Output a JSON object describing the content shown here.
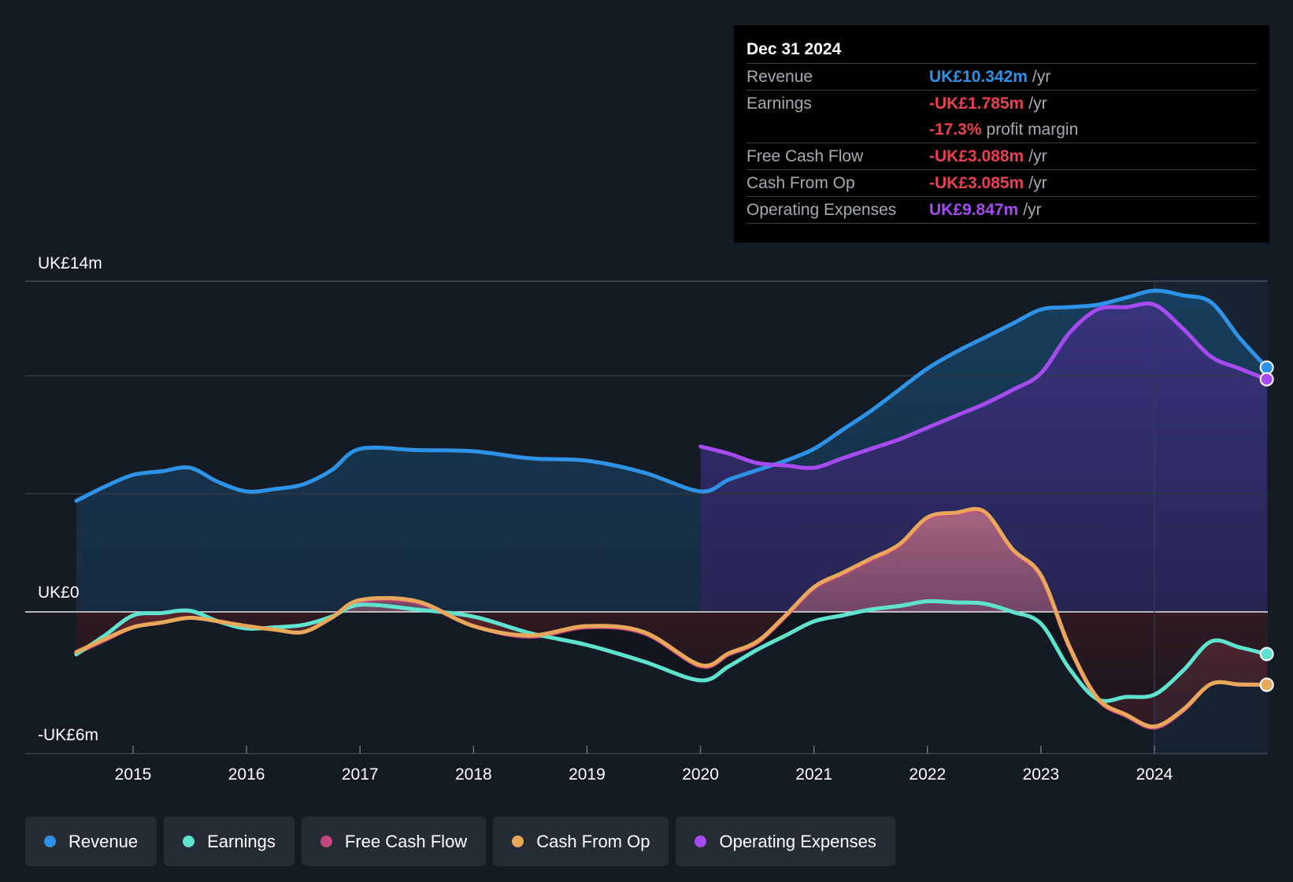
{
  "tooltip": {
    "date": "Dec 31 2024",
    "rows": [
      {
        "label": "Revenue",
        "value": "UK£10.342m",
        "unit": "/yr",
        "color": "#2e93e6"
      },
      {
        "label": "Earnings",
        "value": "-UK£1.785m",
        "unit": "/yr",
        "color": "#e8414f"
      },
      {
        "label": "",
        "value": "-17.3%",
        "unit": "profit margin",
        "color": "#e8414f"
      },
      {
        "label": "Free Cash Flow",
        "value": "-UK£3.088m",
        "unit": "/yr",
        "color": "#e8414f"
      },
      {
        "label": "Cash From Op",
        "value": "-UK£3.085m",
        "unit": "/yr",
        "color": "#e8414f"
      },
      {
        "label": "Operating Expenses",
        "value": "UK£9.847m",
        "unit": "/yr",
        "color": "#a64bf0"
      }
    ]
  },
  "legend": [
    {
      "label": "Revenue",
      "color": "#2e93e6"
    },
    {
      "label": "Earnings",
      "color": "#5fe3cf"
    },
    {
      "label": "Free Cash Flow",
      "color": "#c8457f"
    },
    {
      "label": "Cash From Op",
      "color": "#e8a85a"
    },
    {
      "label": "Operating Expenses",
      "color": "#a64bf0"
    }
  ],
  "chart_data": {
    "type": "line",
    "title": "",
    "ylabel_top": "UK£14m",
    "ylabel_zero": "UK£0",
    "ylabel_bottom": "-UK£6m",
    "ylim": [
      -6,
      14
    ],
    "xlim": [
      2014.05,
      2024.99
    ],
    "x_ticks": [
      2015,
      2016,
      2017,
      2018,
      2019,
      2020,
      2021,
      2022,
      2023,
      2024
    ],
    "series": [
      {
        "name": "Revenue",
        "color": "#2e93e6",
        "x": [
          2014.5,
          2014.75,
          2015.0,
          2015.25,
          2015.5,
          2015.75,
          2016.0,
          2016.25,
          2016.5,
          2016.75,
          2017.0,
          2017.5,
          2018.0,
          2018.5,
          2019.0,
          2019.5,
          2020.0,
          2020.25,
          2020.5,
          2020.75,
          2021.0,
          2021.25,
          2021.5,
          2021.75,
          2022.0,
          2022.25,
          2022.5,
          2022.75,
          2023.0,
          2023.25,
          2023.5,
          2023.75,
          2024.0,
          2024.25,
          2024.5,
          2024.75,
          2024.99
        ],
        "values": [
          4.7,
          5.3,
          5.8,
          5.95,
          6.1,
          5.5,
          5.1,
          5.2,
          5.4,
          6.0,
          6.9,
          6.85,
          6.8,
          6.5,
          6.4,
          5.9,
          5.1,
          5.6,
          6.0,
          6.4,
          6.9,
          7.7,
          8.5,
          9.4,
          10.3,
          11.0,
          11.6,
          12.2,
          12.8,
          12.9,
          13.0,
          13.3,
          13.6,
          13.4,
          13.1,
          11.6,
          10.342
        ]
      },
      {
        "name": "Earnings",
        "color": "#5fe3cf",
        "x": [
          2014.5,
          2014.75,
          2015.0,
          2015.25,
          2015.5,
          2015.75,
          2016.0,
          2016.25,
          2016.5,
          2016.75,
          2017.0,
          2017.5,
          2018.0,
          2018.5,
          2019.0,
          2019.5,
          2020.0,
          2020.25,
          2020.5,
          2020.75,
          2021.0,
          2021.25,
          2021.5,
          2021.75,
          2022.0,
          2022.25,
          2022.5,
          2022.75,
          2023.0,
          2023.25,
          2023.5,
          2023.75,
          2024.0,
          2024.25,
          2024.5,
          2024.75,
          2024.99
        ],
        "values": [
          -1.8,
          -1.0,
          -0.15,
          -0.05,
          0.05,
          -0.4,
          -0.7,
          -0.65,
          -0.55,
          -0.2,
          0.3,
          0.1,
          -0.2,
          -0.9,
          -1.4,
          -2.1,
          -2.9,
          -2.3,
          -1.6,
          -1.0,
          -0.4,
          -0.15,
          0.1,
          0.25,
          0.45,
          0.4,
          0.35,
          0.0,
          -0.5,
          -2.4,
          -3.7,
          -3.6,
          -3.5,
          -2.5,
          -1.25,
          -1.5,
          -1.785
        ]
      },
      {
        "name": "Free Cash Flow",
        "color": "#c8457f",
        "x": [
          2014.5,
          2014.75,
          2015.0,
          2015.25,
          2015.5,
          2015.75,
          2016.0,
          2016.25,
          2016.5,
          2016.75,
          2017.0,
          2017.5,
          2018.0,
          2018.5,
          2019.0,
          2019.5,
          2020.0,
          2020.25,
          2020.5,
          2020.75,
          2021.0,
          2021.25,
          2021.5,
          2021.75,
          2022.0,
          2022.25,
          2022.5,
          2022.75,
          2023.0,
          2023.25,
          2023.5,
          2023.75,
          2024.0,
          2024.25,
          2024.5,
          2024.75,
          2024.99
        ],
        "values": [
          -1.75,
          -1.2,
          -0.65,
          -0.45,
          -0.25,
          -0.4,
          -0.6,
          -0.75,
          -0.85,
          -0.25,
          0.45,
          0.4,
          -0.6,
          -1.05,
          -0.65,
          -0.9,
          -2.3,
          -1.8,
          -1.3,
          -0.2,
          1.0,
          1.6,
          2.2,
          2.8,
          3.95,
          4.15,
          4.2,
          2.6,
          1.5,
          -1.5,
          -3.7,
          -4.4,
          -4.9,
          -4.2,
          -3.05,
          -3.08,
          -3.088
        ]
      },
      {
        "name": "Cash From Op",
        "color": "#e8a85a",
        "x": [
          2014.5,
          2014.75,
          2015.0,
          2015.25,
          2015.5,
          2015.75,
          2016.0,
          2016.25,
          2016.5,
          2016.75,
          2017.0,
          2017.5,
          2018.0,
          2018.5,
          2019.0,
          2019.5,
          2020.0,
          2020.25,
          2020.5,
          2020.75,
          2021.0,
          2021.25,
          2021.5,
          2021.75,
          2022.0,
          2022.25,
          2022.5,
          2022.75,
          2023.0,
          2023.25,
          2023.5,
          2023.75,
          2024.0,
          2024.25,
          2024.5,
          2024.75,
          2024.99
        ],
        "values": [
          -1.7,
          -1.15,
          -0.65,
          -0.45,
          -0.25,
          -0.4,
          -0.6,
          -0.75,
          -0.85,
          -0.25,
          0.5,
          0.45,
          -0.6,
          -1.0,
          -0.6,
          -0.85,
          -2.25,
          -1.75,
          -1.25,
          -0.15,
          1.05,
          1.65,
          2.25,
          2.85,
          4.0,
          4.2,
          4.25,
          2.65,
          1.55,
          -1.45,
          -3.65,
          -4.35,
          -4.85,
          -4.15,
          -3.05,
          -3.07,
          -3.085
        ]
      },
      {
        "name": "Operating Expenses",
        "color": "#a64bf0",
        "x": [
          2020.0,
          2020.25,
          2020.5,
          2020.75,
          2021.0,
          2021.25,
          2021.5,
          2021.75,
          2022.0,
          2022.25,
          2022.5,
          2022.75,
          2023.0,
          2023.25,
          2023.5,
          2023.75,
          2024.0,
          2024.25,
          2024.5,
          2024.75,
          2024.99
        ],
        "values": [
          7.0,
          6.7,
          6.3,
          6.2,
          6.1,
          6.5,
          6.9,
          7.3,
          7.8,
          8.3,
          8.8,
          9.4,
          10.1,
          11.8,
          12.8,
          12.9,
          13.0,
          12.0,
          10.8,
          10.3,
          9.847
        ]
      }
    ]
  }
}
